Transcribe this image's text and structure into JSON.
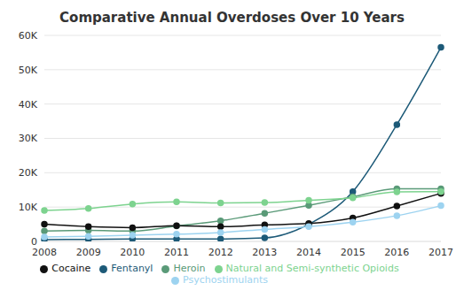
{
  "chart_data": {
    "type": "line",
    "title": "Comparative Annual Overdoses Over 10 Years",
    "categories": [
      "2008",
      "2009",
      "2010",
      "2011",
      "2012",
      "2013",
      "2014",
      "2015",
      "2016",
      "2017"
    ],
    "series": [
      {
        "name": "Fentanyl",
        "color": "#1d5a78",
        "values": [
          500,
          600,
          700,
          700,
          700,
          1000,
          5000,
          14500,
          34000,
          56500
        ]
      },
      {
        "name": "Heroin",
        "color": "#5a9a78",
        "values": [
          3000,
          3200,
          3000,
          4500,
          6000,
          8200,
          10500,
          13000,
          15300,
          15300
        ]
      },
      {
        "name": "Cocaine",
        "color": "#111111",
        "values": [
          5000,
          4300,
          4000,
          4600,
          4300,
          4800,
          5200,
          6800,
          10300,
          14000
        ]
      },
      {
        "name": "Psychostimulants",
        "color": "#9dd3f0",
        "values": [
          1300,
          1500,
          1800,
          2100,
          2600,
          3500,
          4300,
          5600,
          7500,
          10400
        ]
      },
      {
        "name": "Natural and Semi-synthetic Opioids",
        "color": "#7dd38f",
        "values": [
          9000,
          9600,
          10900,
          11500,
          11200,
          11300,
          12000,
          12700,
          14400,
          14500
        ]
      }
    ],
    "ylim": [
      0,
      60000
    ],
    "yticks": [
      0,
      {
        "value": 10000,
        "label": "10K"
      },
      {
        "value": 20000,
        "label": "20K"
      },
      {
        "value": 30000,
        "label": "30K"
      },
      {
        "value": 40000,
        "label": "40K"
      },
      {
        "value": 50000,
        "label": "50K"
      },
      {
        "value": 60000,
        "label": "60K"
      }
    ],
    "grid": true,
    "legend": "bottom",
    "marker": "circle"
  }
}
